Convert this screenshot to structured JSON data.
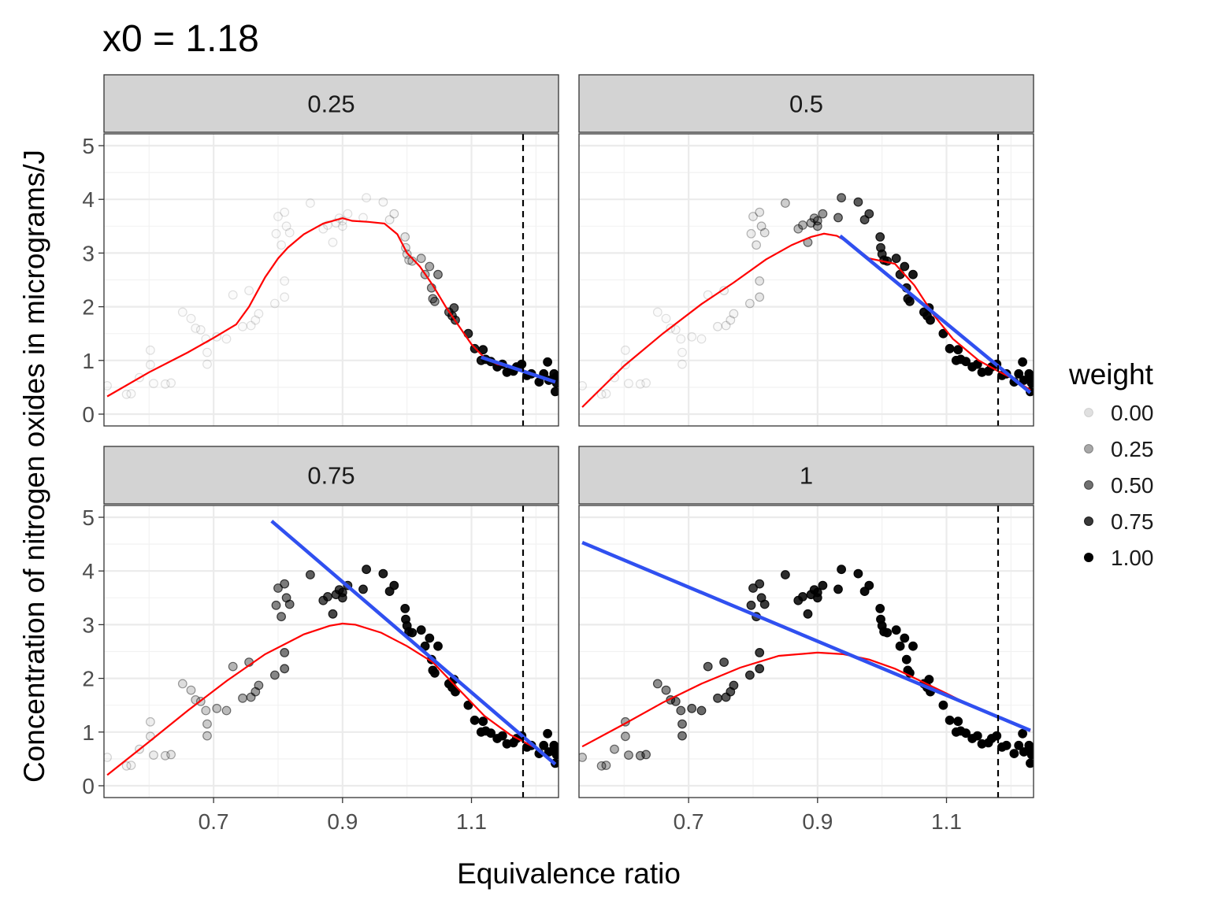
{
  "title": "x0 =  1.18",
  "chart_data": {
    "type": "scatter",
    "xlabel": "Equivalence ratio",
    "ylabel": "Concentration of nitrogen oxides in micrograms/J",
    "xlim": [
      0.53,
      1.235
    ],
    "ylim": [
      -0.22,
      5.22
    ],
    "x_ticks": [
      "0.7",
      "0.9",
      "1.1"
    ],
    "x_tick_values": [
      0.7,
      0.9,
      1.1
    ],
    "y_ticks": [
      "0",
      "1",
      "2",
      "3",
      "4",
      "5"
    ],
    "y_tick_values": [
      0,
      1,
      2,
      3,
      4,
      5
    ],
    "x0": 1.18,
    "grid": true,
    "points": [
      [
        0.535,
        0.53
      ],
      [
        0.565,
        0.37
      ],
      [
        0.572,
        0.38
      ],
      [
        0.585,
        0.68
      ],
      [
        0.602,
        0.92
      ],
      [
        0.602,
        1.19
      ],
      [
        0.607,
        0.57
      ],
      [
        0.625,
        0.56
      ],
      [
        0.634,
        0.58
      ],
      [
        0.652,
        1.9
      ],
      [
        0.665,
        1.78
      ],
      [
        0.672,
        1.6
      ],
      [
        0.68,
        1.57
      ],
      [
        0.688,
        1.4
      ],
      [
        0.69,
        0.93
      ],
      [
        0.69,
        1.15
      ],
      [
        0.705,
        1.44
      ],
      [
        0.72,
        1.4
      ],
      [
        0.73,
        2.22
      ],
      [
        0.745,
        1.63
      ],
      [
        0.755,
        2.3
      ],
      [
        0.758,
        1.65
      ],
      [
        0.765,
        1.75
      ],
      [
        0.77,
        1.87
      ],
      [
        0.795,
        2.06
      ],
      [
        0.797,
        3.36
      ],
      [
        0.8,
        3.68
      ],
      [
        0.805,
        3.15
      ],
      [
        0.81,
        2.18
      ],
      [
        0.81,
        2.48
      ],
      [
        0.81,
        3.76
      ],
      [
        0.813,
        3.5
      ],
      [
        0.818,
        3.38
      ],
      [
        0.85,
        3.93
      ],
      [
        0.87,
        3.45
      ],
      [
        0.877,
        3.52
      ],
      [
        0.885,
        3.2
      ],
      [
        0.89,
        3.56
      ],
      [
        0.895,
        3.65
      ],
      [
        0.9,
        3.5
      ],
      [
        0.9,
        3.6
      ],
      [
        0.908,
        3.73
      ],
      [
        0.932,
        3.66
      ],
      [
        0.937,
        4.03
      ],
      [
        0.963,
        3.95
      ],
      [
        0.973,
        3.62
      ],
      [
        0.98,
        3.73
      ],
      [
        0.997,
        3.3
      ],
      [
        0.998,
        3.1
      ],
      [
        1.0,
        2.98
      ],
      [
        1.003,
        2.87
      ],
      [
        1.008,
        2.85
      ],
      [
        1.022,
        2.9
      ],
      [
        1.028,
        2.6
      ],
      [
        1.035,
        2.75
      ],
      [
        1.038,
        2.35
      ],
      [
        1.04,
        2.15
      ],
      [
        1.043,
        2.1
      ],
      [
        1.048,
        2.6
      ],
      [
        1.065,
        1.9
      ],
      [
        1.07,
        1.83
      ],
      [
        1.073,
        1.98
      ],
      [
        1.075,
        1.75
      ],
      [
        1.095,
        1.5
      ],
      [
        1.105,
        1.22
      ],
      [
        1.115,
        1.0
      ],
      [
        1.118,
        1.2
      ],
      [
        1.122,
        1.02
      ],
      [
        1.13,
        0.98
      ],
      [
        1.14,
        0.88
      ],
      [
        1.148,
        0.93
      ],
      [
        1.155,
        0.78
      ],
      [
        1.165,
        0.8
      ],
      [
        1.17,
        0.88
      ],
      [
        1.178,
        0.93
      ],
      [
        1.186,
        0.72
      ],
      [
        1.193,
        0.75
      ],
      [
        1.205,
        0.6
      ],
      [
        1.212,
        0.75
      ],
      [
        1.218,
        0.97
      ],
      [
        1.22,
        0.63
      ],
      [
        1.228,
        0.66
      ],
      [
        1.228,
        0.75
      ],
      [
        1.23,
        0.42
      ],
      [
        1.232,
        0.58
      ],
      [
        1.232,
        0.7
      ]
    ],
    "panels": [
      {
        "label": "0.25",
        "span": 0.25,
        "fit_line": [
          [
            1.115,
            1.06
          ],
          [
            1.23,
            0.6
          ]
        ],
        "loess": [
          [
            0.535,
            0.33
          ],
          [
            0.6,
            0.78
          ],
          [
            0.66,
            1.15
          ],
          [
            0.7,
            1.42
          ],
          [
            0.735,
            1.67
          ],
          [
            0.755,
            2.0
          ],
          [
            0.78,
            2.55
          ],
          [
            0.8,
            2.9
          ],
          [
            0.815,
            3.1
          ],
          [
            0.84,
            3.35
          ],
          [
            0.87,
            3.55
          ],
          [
            0.9,
            3.65
          ],
          [
            0.915,
            3.6
          ],
          [
            0.94,
            3.58
          ],
          [
            0.965,
            3.55
          ],
          [
            0.985,
            3.35
          ],
          [
            1.0,
            3.0
          ],
          [
            1.02,
            2.75
          ],
          [
            1.04,
            2.4
          ],
          [
            1.06,
            2.0
          ],
          [
            1.08,
            1.65
          ],
          [
            1.1,
            1.3
          ],
          [
            1.12,
            1.05
          ],
          [
            1.14,
            0.93
          ],
          [
            1.16,
            0.88
          ],
          [
            1.18,
            0.82
          ],
          [
            1.2,
            0.72
          ],
          [
            1.23,
            0.6
          ]
        ]
      },
      {
        "label": "0.5",
        "span": 0.5,
        "fit_line": [
          [
            0.935,
            3.32
          ],
          [
            1.23,
            0.4
          ]
        ],
        "loess": [
          [
            0.535,
            0.13
          ],
          [
            0.6,
            0.9
          ],
          [
            0.66,
            1.5
          ],
          [
            0.72,
            2.05
          ],
          [
            0.77,
            2.45
          ],
          [
            0.82,
            2.88
          ],
          [
            0.86,
            3.15
          ],
          [
            0.89,
            3.3
          ],
          [
            0.91,
            3.36
          ],
          [
            0.93,
            3.32
          ],
          [
            0.95,
            3.18
          ],
          [
            0.98,
            2.9
          ],
          [
            1.02,
            2.8
          ],
          [
            1.05,
            2.4
          ],
          [
            1.08,
            1.85
          ],
          [
            1.11,
            1.4
          ],
          [
            1.15,
            1.0
          ],
          [
            1.18,
            0.8
          ],
          [
            1.2,
            0.68
          ],
          [
            1.23,
            0.45
          ]
        ]
      },
      {
        "label": "0.75",
        "span": 0.75,
        "fit_line": [
          [
            0.79,
            4.93
          ],
          [
            1.23,
            0.4
          ]
        ],
        "loess": [
          [
            0.535,
            0.2
          ],
          [
            0.6,
            0.82
          ],
          [
            0.66,
            1.4
          ],
          [
            0.72,
            1.95
          ],
          [
            0.78,
            2.45
          ],
          [
            0.84,
            2.82
          ],
          [
            0.88,
            2.98
          ],
          [
            0.9,
            3.02
          ],
          [
            0.92,
            3.0
          ],
          [
            0.96,
            2.85
          ],
          [
            1.0,
            2.6
          ],
          [
            1.04,
            2.3
          ],
          [
            1.08,
            1.8
          ],
          [
            1.12,
            1.3
          ],
          [
            1.16,
            0.95
          ],
          [
            1.2,
            0.7
          ],
          [
            1.23,
            0.42
          ]
        ]
      },
      {
        "label": "1",
        "span": 1,
        "fit_line": [
          [
            0.535,
            4.53
          ],
          [
            1.23,
            1.03
          ]
        ],
        "loess": [
          [
            0.535,
            0.73
          ],
          [
            0.6,
            1.15
          ],
          [
            0.66,
            1.55
          ],
          [
            0.72,
            1.9
          ],
          [
            0.78,
            2.2
          ],
          [
            0.84,
            2.42
          ],
          [
            0.9,
            2.48
          ],
          [
            0.94,
            2.45
          ],
          [
            0.98,
            2.35
          ],
          [
            1.02,
            2.18
          ],
          [
            1.06,
            1.95
          ],
          [
            1.1,
            1.72
          ],
          [
            1.14,
            1.48
          ],
          [
            1.18,
            1.28
          ],
          [
            1.23,
            1.02
          ]
        ]
      }
    ],
    "legend": {
      "title": "weight",
      "placement": "right",
      "entries": [
        "0.00",
        "0.25",
        "0.50",
        "0.75",
        "1.00"
      ]
    },
    "colors": {
      "fit_line": "#3050f0",
      "loess": "#ff0000",
      "points": "#000000",
      "strip_fill": "#d3d3d3",
      "grid": "#ebebeb"
    }
  }
}
